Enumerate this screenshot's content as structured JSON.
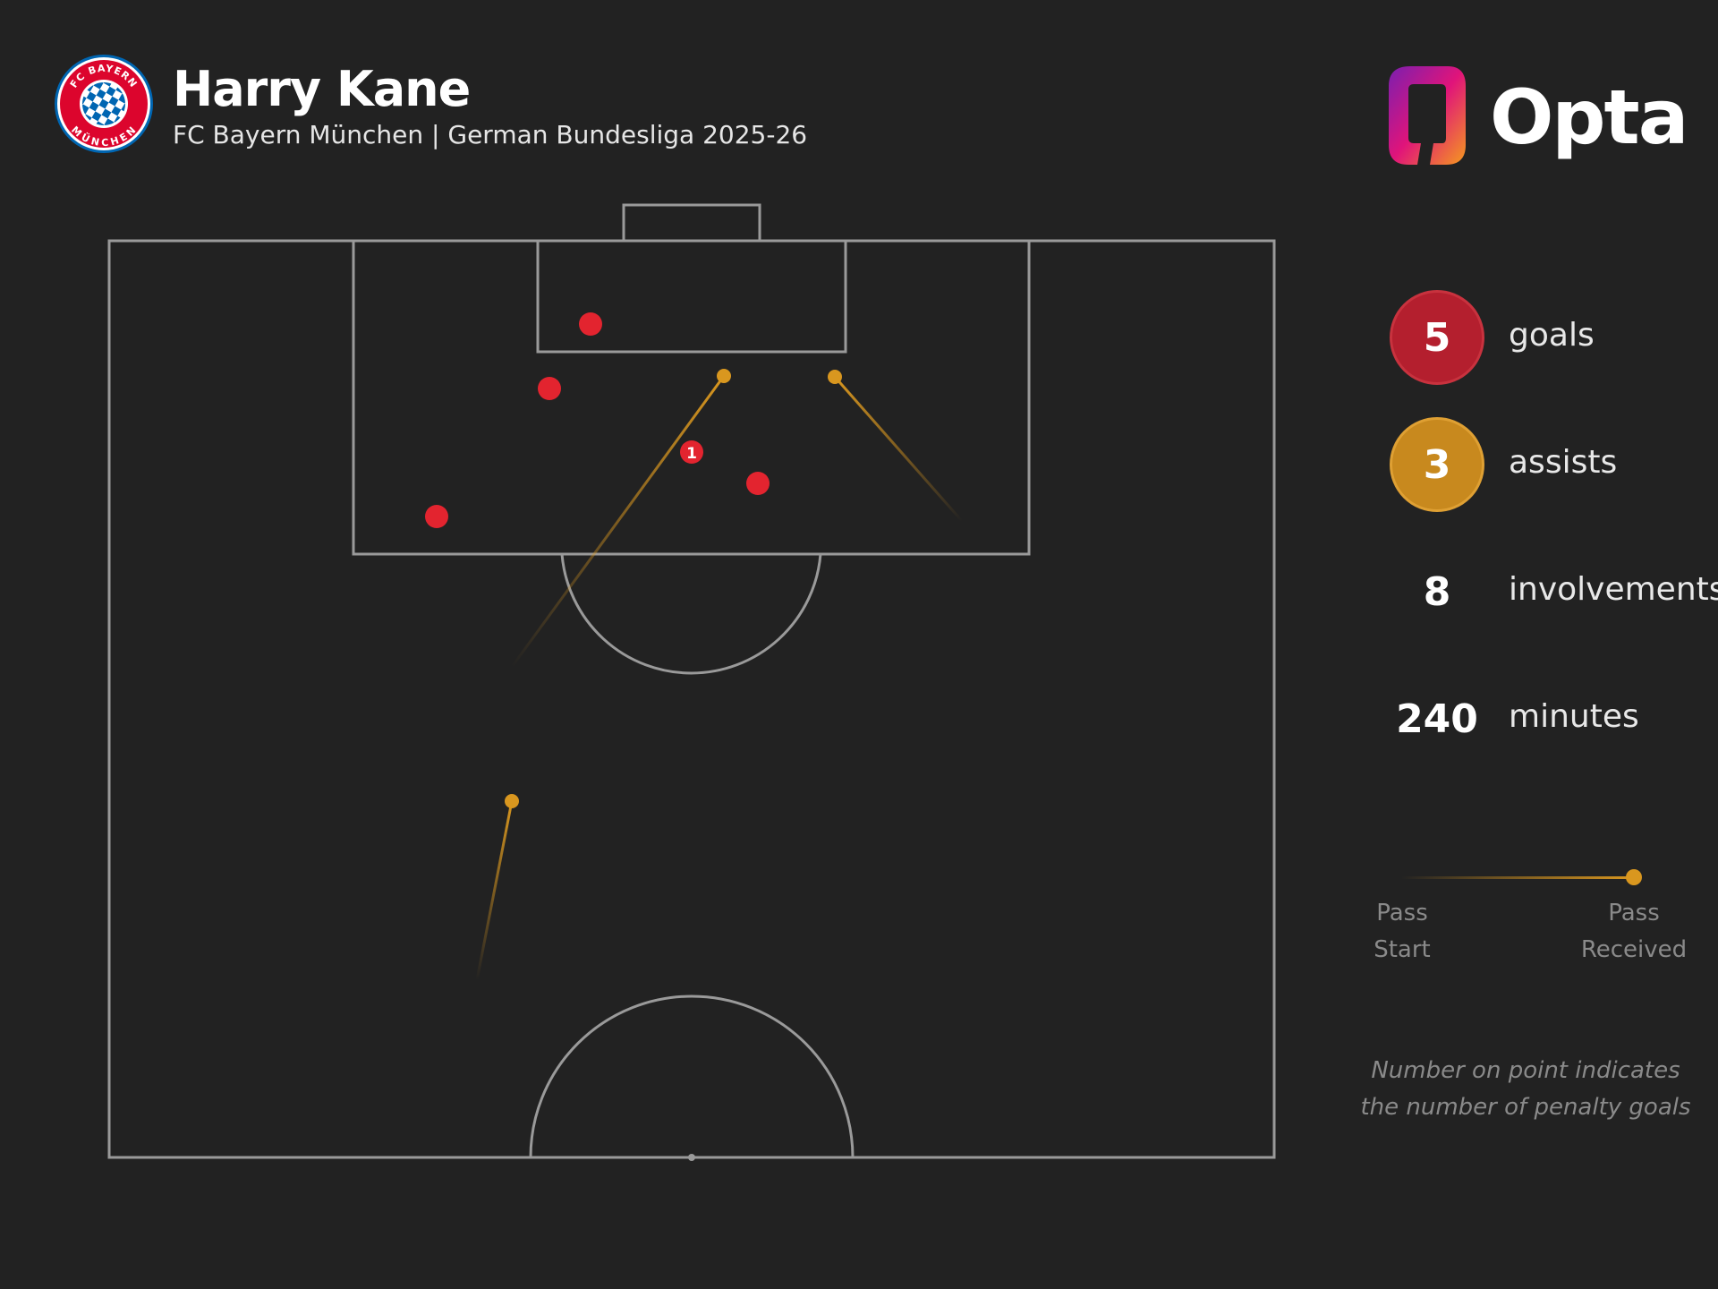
{
  "header": {
    "player_name": "Harry Kane",
    "subtitle": "FC Bayern München | German Bundesliga 2025-26",
    "crest_text": "FC BAYERN MÜNCHEN",
    "brand_logo": "Opta"
  },
  "stats": {
    "goals": {
      "value": "5",
      "label": "goals",
      "color": "#b41f2e"
    },
    "assists": {
      "value": "3",
      "label": "assists",
      "color": "#c8891e"
    },
    "involvements": {
      "value": "8",
      "label": "involvements"
    },
    "minutes": {
      "value": "240",
      "label": "minutes"
    }
  },
  "legend": {
    "pass_start": [
      "Pass",
      "Start"
    ],
    "pass_received": [
      "Pass",
      "Received"
    ]
  },
  "note": [
    "Number on point indicates",
    "the number of penalty goals"
  ],
  "colors": {
    "background": "#222222",
    "pitch_lines": "#9a9a9a",
    "goal": "#e3242f",
    "assist": "#d9971f"
  }
}
